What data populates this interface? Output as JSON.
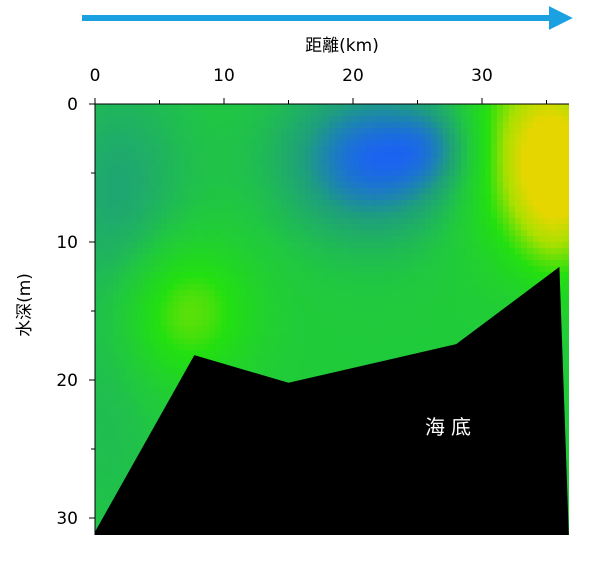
{
  "chart_data": {
    "type": "heatmap",
    "xlabel": "距離(km)",
    "ylabel": "水深(m)",
    "xlim": [
      0,
      36
    ],
    "ylim": [
      0,
      31
    ],
    "x_axis_position": "top",
    "y_axis_inverted": true,
    "x_ticks": [
      0,
      10,
      20,
      30
    ],
    "y_ticks": [
      0,
      10,
      20,
      30
    ],
    "direction_arrow_color": "#1ba1e2",
    "seafloor_label": "海底",
    "seafloor_color": "#000000",
    "colorscale": [
      "#1a5cff",
      "#1e9e7e",
      "#20c840",
      "#22e010",
      "#a8e000",
      "#e6d600"
    ],
    "bottom_profile": [
      {
        "x": 0,
        "depth": 31
      },
      {
        "x": 7.7,
        "depth": 18.2
      },
      {
        "x": 15,
        "depth": 20.2
      },
      {
        "x": 28,
        "depth": 17.4
      },
      {
        "x": 36,
        "depth": 11.8
      }
    ],
    "field_blobs": [
      {
        "x": 21.5,
        "depth": 4,
        "sx": 5,
        "sy": 4,
        "value": -1.0
      },
      {
        "x": 27,
        "depth": 3,
        "sx": 2.5,
        "sy": 2.5,
        "value": -0.45
      },
      {
        "x": 7,
        "depth": 15,
        "sx": 3.5,
        "sy": 3.5,
        "value": 0.75
      },
      {
        "x": 36,
        "depth": 5,
        "sx": 2.5,
        "sy": 4.5,
        "value": 1.6
      },
      {
        "x": 32,
        "depth": 3,
        "sx": 3.5,
        "sy": 5,
        "value": 0.8
      },
      {
        "x": 2,
        "depth": 6,
        "sx": 4,
        "sy": 6,
        "value": -0.45
      },
      {
        "x": 1,
        "depth": 22,
        "sx": 3,
        "sy": 8,
        "value": -0.2
      }
    ]
  }
}
